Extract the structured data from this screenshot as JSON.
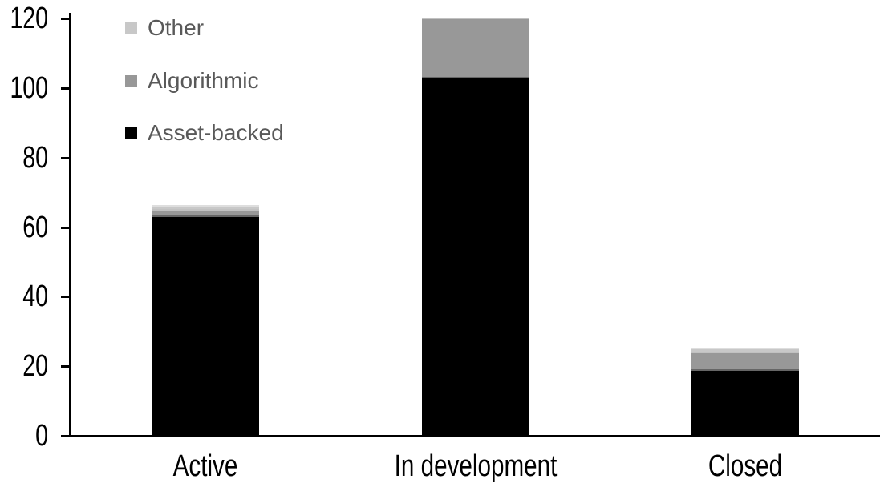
{
  "chart_data": {
    "type": "bar",
    "stacked": true,
    "title": "",
    "xlabel": "",
    "ylabel": "",
    "categories": [
      "Active",
      "In development",
      "Closed"
    ],
    "series": [
      {
        "name": "Asset-backed",
        "color": "#000000",
        "values": [
          63,
          103,
          19
        ]
      },
      {
        "name": "Algorithmic",
        "color": "#989898",
        "values": [
          2,
          17,
          5
        ]
      },
      {
        "name": "Other",
        "color": "#c8c8c8",
        "values": [
          1,
          0,
          1
        ]
      }
    ],
    "totals": [
      66,
      120,
      25
    ],
    "ylim": [
      0,
      120
    ],
    "yticks": [
      0,
      20,
      40,
      60,
      80,
      100,
      120
    ],
    "grid": false,
    "axis_color": "#000000",
    "legend": {
      "position": "top-left",
      "order": [
        "Other",
        "Algorithmic",
        "Asset-backed"
      ],
      "text_color": "#595959"
    }
  }
}
